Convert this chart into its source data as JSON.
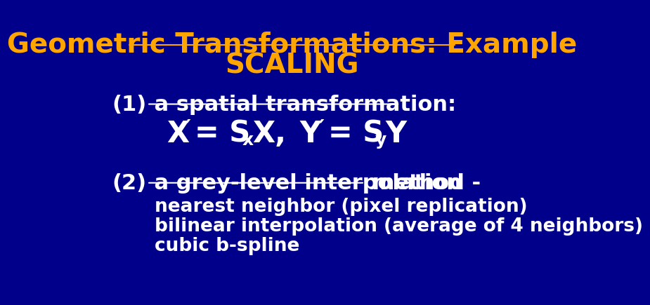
{
  "bg_color": "#00008B",
  "title_line1": "Geometric Transformations: Example",
  "title_line2": "SCALING",
  "title_color": "#FFA500",
  "title_fontsize": 28,
  "body_color": "#FFFFFF",
  "body_fontsize": 22,
  "formula_fontsize": 30,
  "section1_label": "(1)",
  "section1_text": " a spatial transformation:",
  "section2_label": "(2)",
  "section2_text": " a grey-level interpolation",
  "section2_suffix": " method -",
  "bullet1": "nearest neighbor (pixel replication)",
  "bullet2": "bilinear interpolation (average of 4 neighbors)",
  "bullet3": "cubic b-spline",
  "bullet_fontsize": 19,
  "prime_char": "′"
}
